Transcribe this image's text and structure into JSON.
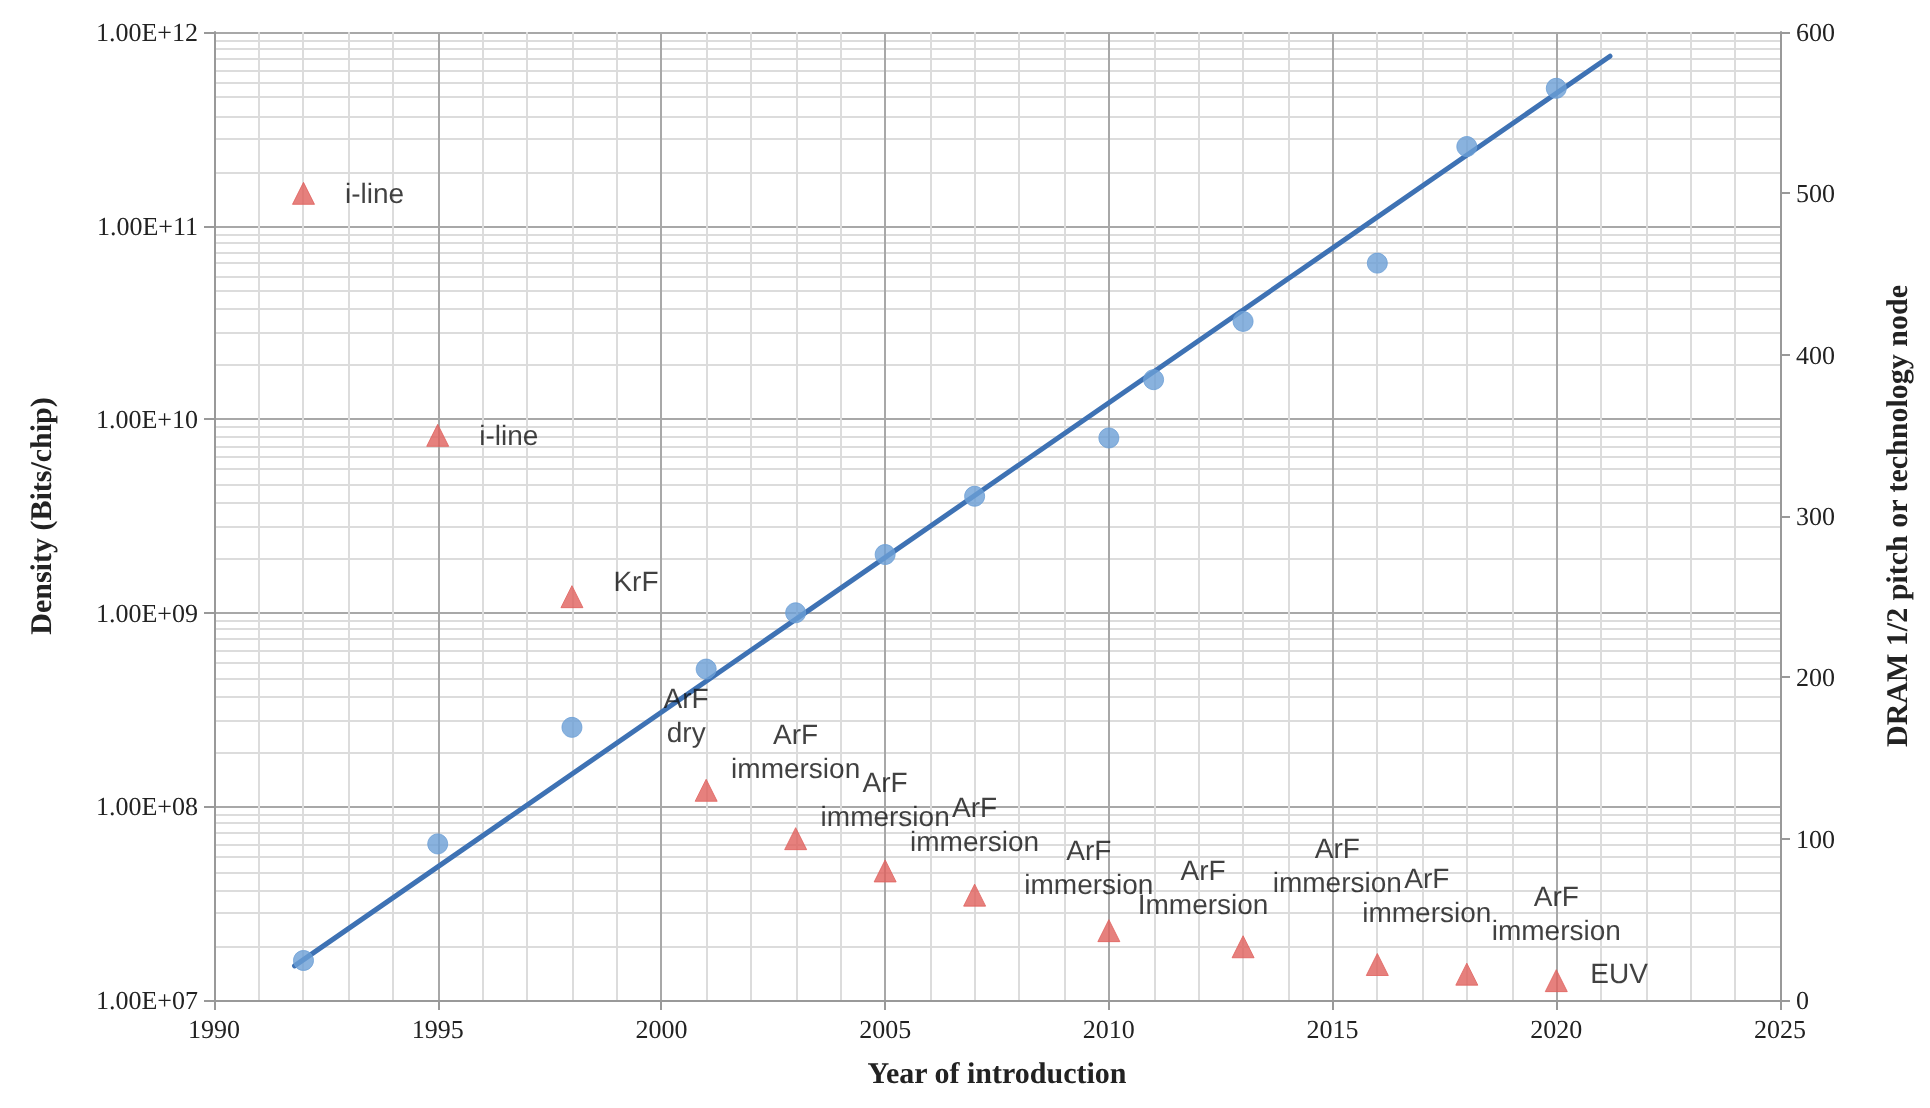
{
  "chart_data": {
    "type": "scatter",
    "xlabel": "Year of introduction",
    "ylabel": "Density (Bits/chip)",
    "y2label": "DRAM 1/2 pitch or technology node",
    "xlim": [
      1990,
      2025
    ],
    "xticks": [
      1990,
      1995,
      2000,
      2005,
      2010,
      2015,
      2020,
      2025
    ],
    "ylim": [
      10000000,
      1000000000000
    ],
    "yticks": [
      {
        "value": 10000000,
        "label": "1.00E+07"
      },
      {
        "value": 100000000,
        "label": "1.00E+08"
      },
      {
        "value": 1000000000,
        "label": "1.00E+09"
      },
      {
        "value": 10000000000,
        "label": "1.00E+10"
      },
      {
        "value": 100000000000,
        "label": "1.00E+11"
      },
      {
        "value": 1000000000000,
        "label": "1.00E+12"
      }
    ],
    "y2lim": [
      0,
      600
    ],
    "y2ticks": [
      0,
      100,
      200,
      300,
      400,
      500,
      600
    ],
    "log": "y",
    "grid": true,
    "series": [
      {
        "marker": "circle",
        "color": "#6b9fd6",
        "x": [
          1992,
          1995,
          1998,
          2001,
          2003,
          2005,
          2007,
          2010,
          2011,
          2013,
          2016,
          2018,
          2020
        ],
        "values": [
          16000000,
          64000000,
          256000000,
          512000000,
          1000000000,
          2000000000,
          4000000000,
          8000000000,
          16000000000,
          32000000000,
          64000000000,
          256000000000,
          512000000000
        ]
      },
      {
        "type": "line",
        "marker": "none",
        "line_style": "solid",
        "color": "#3e72b4",
        "x": [
          1991.8,
          2021.2
        ],
        "values": [
          15000000,
          750000000000
        ]
      },
      {
        "type": "scatter",
        "marker": "triangle",
        "axis": "y2",
        "color": "#e0605c",
        "x": [
          1992,
          1995,
          1998,
          2001,
          2003,
          2005,
          2007,
          2010,
          2013,
          2016,
          2018,
          2020
        ],
        "values": [
          500,
          350,
          250,
          130,
          100,
          80,
          65,
          43,
          33,
          22,
          16,
          12
        ],
        "value_labels": [
          "i-line",
          "i-line",
          "KrF",
          "ArF\ndry",
          "ArF\nimmersion",
          "ArF\nimmersion",
          "ArF\nimmersion",
          "ArF\nimmersion",
          "ArF\nImmersion",
          "ArF\nimmersion",
          "ArF\nimmersion",
          "ArF\nimmersion"
        ]
      }
    ],
    "annotations": [
      "EUV"
    ]
  }
}
